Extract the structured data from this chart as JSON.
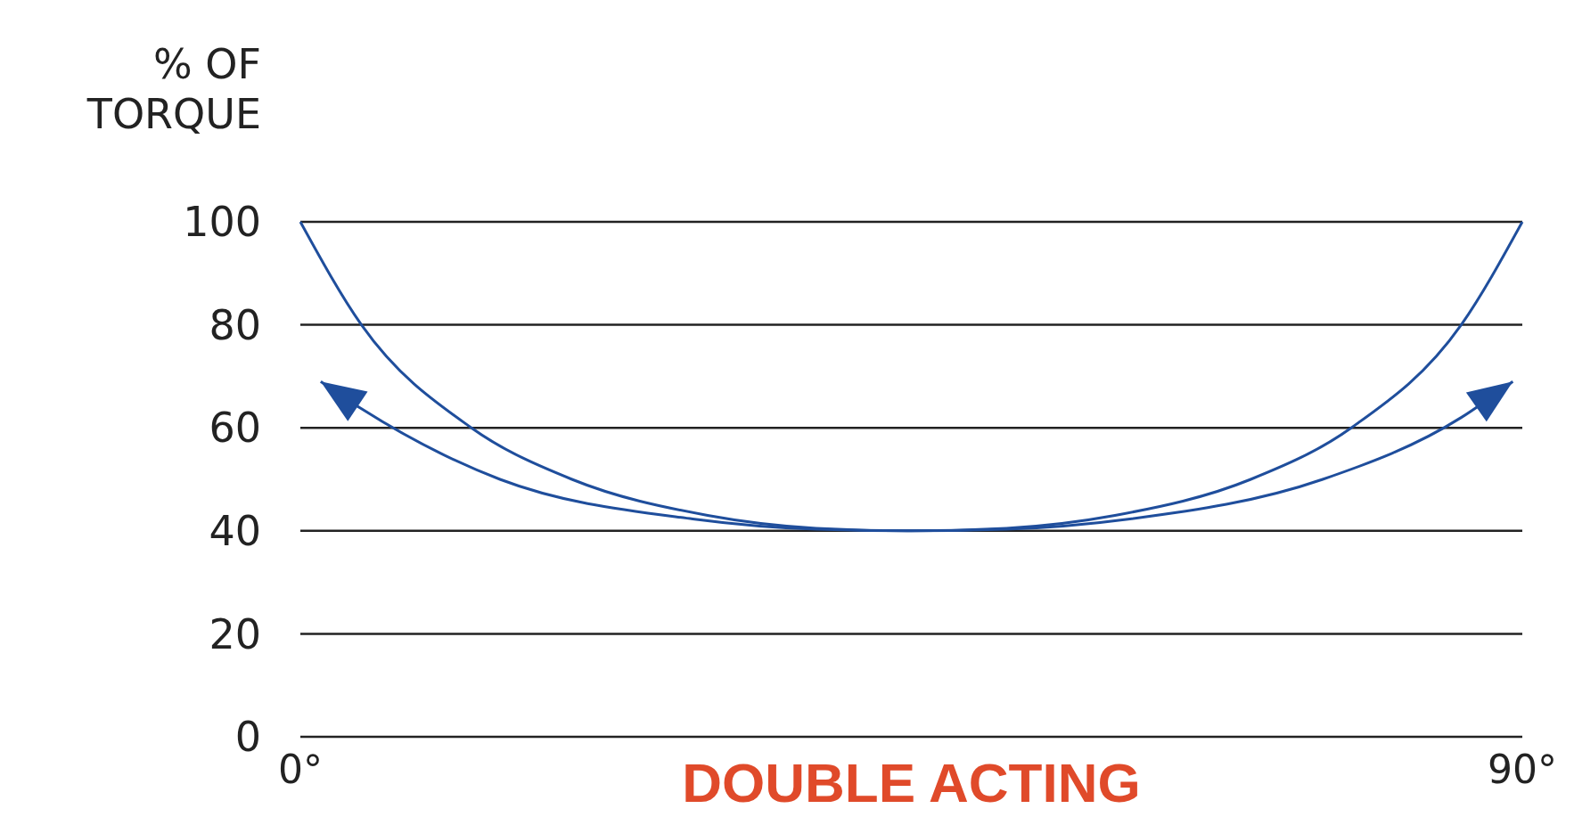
{
  "chart_data": {
    "type": "line",
    "ylabel": "% OF TORQUE",
    "xlabel": "DOUBLE ACTING",
    "xlim": [
      0,
      90
    ],
    "ylim": [
      0,
      100
    ],
    "xticks": [
      {
        "value": 0,
        "label": "0°"
      },
      {
        "value": 90,
        "label": "90°"
      }
    ],
    "yticks": [
      0,
      20,
      40,
      60,
      80,
      100
    ],
    "grid": "y",
    "marker": "none",
    "line_style": "solid",
    "series": [
      {
        "color": "#1f4e9c",
        "x": [
          0,
          4.5,
          12.6,
          20,
          30,
          38,
          45,
          52,
          60,
          70,
          77.4,
          85.5,
          90
        ],
        "values": [
          100,
          80,
          60,
          50,
          43,
          40.5,
          40,
          40.5,
          43,
          50,
          60,
          80,
          100
        ]
      },
      {
        "color": "#1f4e9c",
        "x": [
          1.5,
          4.5,
          14.7,
          28.9,
          38,
          45,
          52,
          61.1,
          75.3,
          85.5,
          89.3
        ],
        "values": [
          69,
          63.7,
          50,
          42.3,
          40.3,
          40,
          40.3,
          42.3,
          50,
          62,
          69
        ]
      }
    ]
  }
}
